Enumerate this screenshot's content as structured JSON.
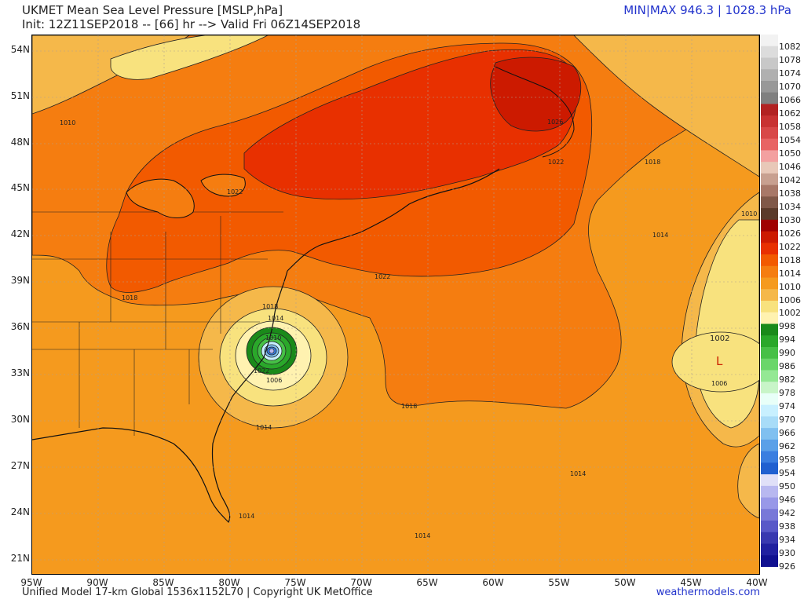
{
  "header": {
    "title": "UKMET Mean Sea Level Pressure [MSLP,hPa]",
    "subtitle": "Init: 12Z11SEP2018 -- [66] hr --> Valid Fri 06Z14SEP2018",
    "range": "MIN|MAX 946.3 | 1028.3 hPa"
  },
  "footer": {
    "model": "Unified Model 17-km Global 1536x1152L70 | Copyright UK MetOffice",
    "source": "weathermodels.com"
  },
  "map": {
    "lat_labels": [
      "54N",
      "51N",
      "48N",
      "45N",
      "42N",
      "39N",
      "36N",
      "33N",
      "30N",
      "27N",
      "24N",
      "21N"
    ],
    "lon_labels": [
      "95W",
      "90W",
      "85W",
      "80W",
      "75W",
      "70W",
      "65W",
      "60W",
      "55W",
      "50W",
      "45W",
      "40W"
    ],
    "isobar_labels": [
      "1010",
      "1022",
      "1018",
      "1026",
      "1022",
      "1018",
      "1014",
      "1010",
      "1022",
      "1018",
      "1014",
      "1010",
      "1006",
      "1022",
      "1018",
      "1014",
      "1014",
      "1014",
      "1014",
      "1002",
      "1006"
    ],
    "low_symbol": "L",
    "low_pressure_label": "1002"
  },
  "colorbar": {
    "labels": [
      "1082",
      "1078",
      "1074",
      "1070",
      "1066",
      "1062",
      "1058",
      "1054",
      "1050",
      "1046",
      "1042",
      "1038",
      "1034",
      "1030",
      "1026",
      "1022",
      "1018",
      "1014",
      "1010",
      "1006",
      "1002",
      "998",
      "994",
      "990",
      "986",
      "982",
      "978",
      "974",
      "970",
      "966",
      "962",
      "958",
      "954",
      "950",
      "946",
      "942",
      "938",
      "934",
      "930",
      "926"
    ],
    "colors": [
      "#f2f2f2",
      "#dcdcdc",
      "#c8c8c8",
      "#b0b0b0",
      "#989898",
      "#808080",
      "#b22222",
      "#c83232",
      "#d84848",
      "#e86464",
      "#f3a0a0",
      "#e8c8b8",
      "#c8a090",
      "#a87868",
      "#805848",
      "#5a3a2a",
      "#a00000",
      "#cc1a00",
      "#e83000",
      "#f25a00",
      "#f57d10",
      "#f59a1e",
      "#f5b84a",
      "#f8e27e",
      "#fff2b0",
      "#1a8a1a",
      "#2aa82a",
      "#46c046",
      "#6ad66a",
      "#94e894",
      "#c8f5c8",
      "#e8fff8",
      "#c8f0ff",
      "#a8dcf8",
      "#80c0f0",
      "#5aa0e8",
      "#3a7ee0",
      "#2060d0",
      "#e0e0f8",
      "#b8b8f0",
      "#9898e8",
      "#7878d8",
      "#5858c8",
      "#3838b0",
      "#2020a0",
      "#101090"
    ]
  }
}
